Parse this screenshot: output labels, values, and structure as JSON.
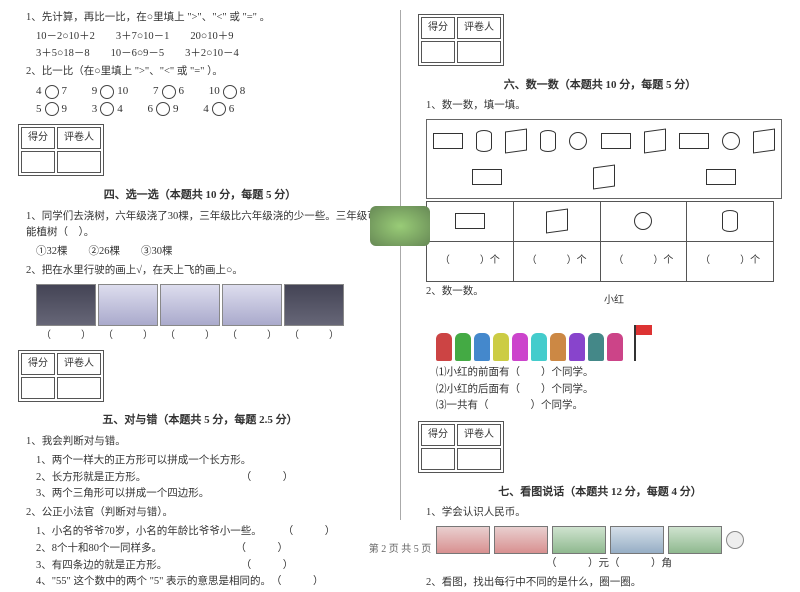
{
  "footer": "第 2 页 共 5 页",
  "left": {
    "q1_lead": "1、先计算，再比一比，在○里填上 \">\"、\"<\" 或 \"=\" 。",
    "q1_rows": [
      "10－2○10＋2　　3＋7○10－1　　20○10＋9",
      "3＋5○18－8　　10－6○9－5　　3＋2○10－4"
    ],
    "q2_lead": "2、比一比（在○里填上 \">\"、\"<\" 或 \"=\" ）。",
    "q2_pairs": [
      [
        "4",
        "7"
      ],
      [
        "9",
        "10"
      ],
      [
        "7",
        "6"
      ],
      [
        "10",
        "8"
      ],
      [
        "5",
        "9"
      ],
      [
        "3",
        "4"
      ],
      [
        "6",
        "9"
      ],
      [
        "4",
        "6"
      ]
    ],
    "sec4_title": "四、选一选（本题共 10 分，每题 5 分）",
    "s4_q1": "1、同学们去浇树，六年级浇了30棵，三年级比六年级浇的少一些。三年级可能植树（　）。",
    "s4_q1_opts": "①32棵　　②26棵　　③30棵",
    "s4_q2": "2、把在水里行驶的画上√，在天上飞的画上○。",
    "sec5_title": "五、对与错（本题共 5 分，每题 2.5 分）",
    "s5_q1": "1、我会判断对与错。",
    "s5_q1_items": [
      "1、两个一样大的正方形可以拼成一个长方形。",
      "2、长方形就是正方形。",
      "3、两个三角形可以拼成一个四边形。"
    ],
    "s5_q2": "2、公正小法官（判断对与错）。",
    "s5_q2_items": [
      "1、小名的爷爷70岁，小名的年龄比爷爷小一些。",
      "2、8个十和80个一同样多。",
      "3、有四条边的就是正方形。",
      "4、\"55\" 这个数中的两个 \"5\" 表示的意思是相同的。"
    ],
    "paren": "（　　　）",
    "score_cells": [
      "得分",
      "评卷人"
    ]
  },
  "right": {
    "sec6_title": "六、数一数（本题共 10 分，每题 5 分）",
    "s6_q1": "1、数一数，填一填。",
    "tbl_foot": "（　　　）个",
    "s6_q2": "2、数一数。",
    "xh_label": "小红",
    "s6_q2_items": [
      "⑴小红的前面有（　　）个同学。",
      "⑵小红的后面有（　　）个同学。",
      "⑶一共有（　　　　）个同学。"
    ],
    "sec7_title": "七、看图说话（本题共 12 分，每题 4 分）",
    "s7_q1": "1、学会认识人民币。",
    "s7_money_ans": "（　　　）元（　　　）角",
    "s7_q2": "2、看图，找出每行中不同的是什么，圈一圈。",
    "score_cells": [
      "得分",
      "评卷人"
    ],
    "kid_colors": [
      "#c44",
      "#4a4",
      "#48c",
      "#cc4",
      "#c4c",
      "#4cc",
      "#c84",
      "#84c",
      "#488",
      "#c48"
    ]
  }
}
